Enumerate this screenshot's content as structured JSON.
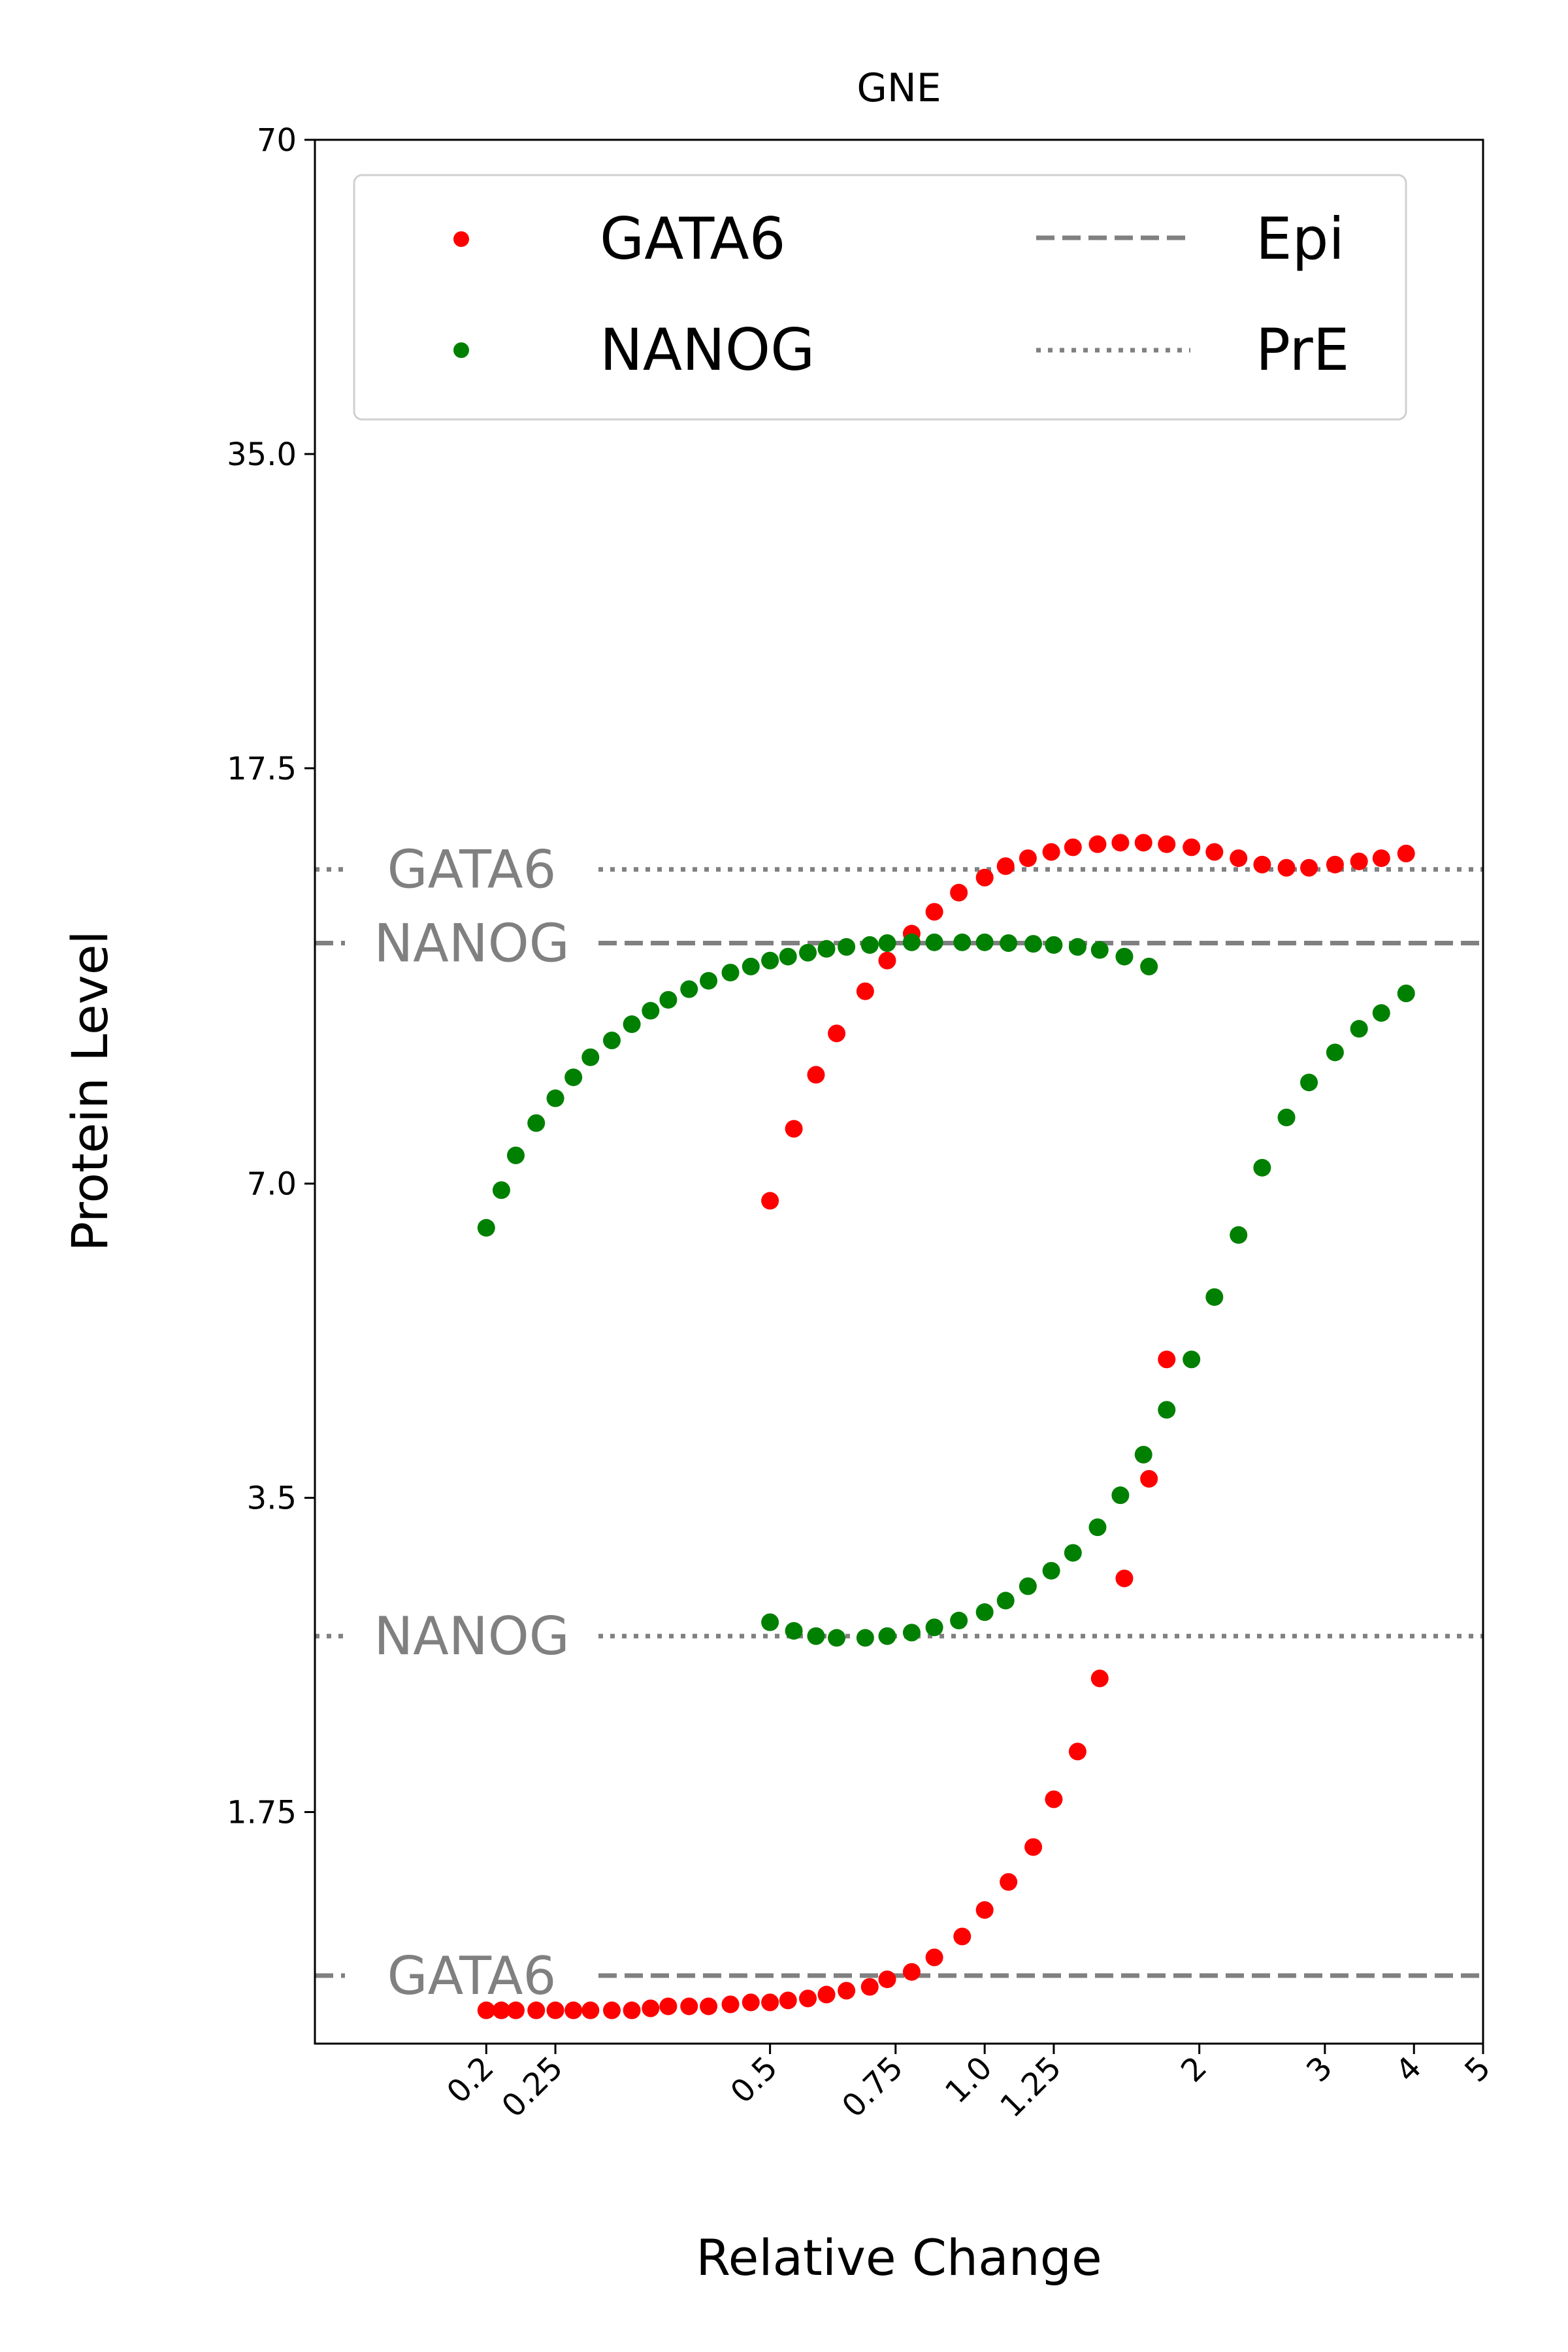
{
  "chart_data": {
    "type": "scatter",
    "title": "GNE",
    "xlabel": "Relative Change",
    "ylabel": "Protein Level",
    "x_scale": "log",
    "y_scale": "log",
    "xlim": [
      0.115,
      5.0
    ],
    "ylim": [
      1.05,
      70
    ],
    "x_ticks": [
      {
        "value": 0.2,
        "label": "0.2"
      },
      {
        "value": 0.25,
        "label": "0.25"
      },
      {
        "value": 0.5,
        "label": "0.5"
      },
      {
        "value": 0.75,
        "label": "0.75"
      },
      {
        "value": 1.0,
        "label": "1.0"
      },
      {
        "value": 1.25,
        "label": "1.25"
      },
      {
        "value": 2,
        "label": "2"
      },
      {
        "value": 3,
        "label": "3"
      },
      {
        "value": 4,
        "label": "4"
      },
      {
        "value": 5,
        "label": "5"
      }
    ],
    "y_ticks": [
      {
        "value": 1.75,
        "label": "1.75"
      },
      {
        "value": 3.5,
        "label": "3.5"
      },
      {
        "value": 7.0,
        "label": "7.0"
      },
      {
        "value": 17.5,
        "label": "17.5"
      },
      {
        "value": 35.0,
        "label": "35.0"
      },
      {
        "value": 70,
        "label": "70"
      }
    ],
    "legend": {
      "placement": "top",
      "columns": 2,
      "entries": [
        {
          "label": "GATA6",
          "kind": "marker",
          "color": "#ff0000"
        },
        {
          "label": "NANOG",
          "kind": "marker",
          "color": "#008000"
        },
        {
          "label": "Epi",
          "kind": "dashed",
          "color": "#808080"
        },
        {
          "label": "PrE",
          "kind": "dotted",
          "color": "#808080"
        }
      ]
    },
    "reference_lines": [
      {
        "label": "GATA6",
        "y": 14.0,
        "style": "dotted",
        "color": "#808080"
      },
      {
        "label": "NANOG",
        "y": 11.9,
        "style": "dashed",
        "color": "#808080"
      },
      {
        "label": "NANOG",
        "y": 2.58,
        "style": "dotted",
        "color": "#808080"
      },
      {
        "label": "GATA6",
        "y": 1.22,
        "style": "dashed",
        "color": "#808080"
      }
    ],
    "series": [
      {
        "name": "GATA6",
        "color": "#ff0000",
        "points": [
          [
            0.2,
            1.13
          ],
          [
            0.21,
            1.13
          ],
          [
            0.22,
            1.13
          ],
          [
            0.235,
            1.13
          ],
          [
            0.25,
            1.13
          ],
          [
            0.265,
            1.13
          ],
          [
            0.28,
            1.13
          ],
          [
            0.3,
            1.13
          ],
          [
            0.32,
            1.13
          ],
          [
            0.34,
            1.135
          ],
          [
            0.36,
            1.14
          ],
          [
            0.385,
            1.14
          ],
          [
            0.41,
            1.14
          ],
          [
            0.44,
            1.145
          ],
          [
            0.47,
            1.15
          ],
          [
            0.5,
            1.15
          ],
          [
            0.53,
            1.155
          ],
          [
            0.565,
            1.16
          ],
          [
            0.6,
            1.17
          ],
          [
            0.64,
            1.18
          ],
          [
            0.69,
            1.19
          ],
          [
            0.73,
            1.21
          ],
          [
            0.79,
            1.23
          ],
          [
            0.85,
            1.27
          ],
          [
            0.93,
            1.33
          ],
          [
            1.0,
            1.41
          ],
          [
            1.08,
            1.5
          ],
          [
            1.17,
            1.62
          ],
          [
            1.25,
            1.8
          ],
          [
            1.35,
            2.0
          ],
          [
            1.45,
            2.35
          ],
          [
            1.57,
            2.93
          ],
          [
            1.7,
            3.65
          ],
          [
            1.8,
            4.75
          ],
          [
            0.5,
            6.74
          ],
          [
            0.54,
            7.9
          ],
          [
            0.58,
            8.9
          ],
          [
            0.62,
            9.75
          ],
          [
            0.68,
            10.7
          ],
          [
            0.73,
            11.45
          ],
          [
            0.79,
            12.15
          ],
          [
            0.85,
            12.75
          ],
          [
            0.92,
            13.3
          ],
          [
            1.0,
            13.75
          ],
          [
            1.07,
            14.1
          ],
          [
            1.15,
            14.35
          ],
          [
            1.24,
            14.55
          ],
          [
            1.33,
            14.7
          ],
          [
            1.44,
            14.8
          ],
          [
            1.55,
            14.85
          ],
          [
            1.67,
            14.85
          ],
          [
            1.8,
            14.8
          ],
          [
            1.95,
            14.7
          ],
          [
            2.1,
            14.55
          ],
          [
            2.27,
            14.35
          ],
          [
            2.45,
            14.15
          ],
          [
            2.65,
            14.05
          ],
          [
            2.85,
            14.05
          ],
          [
            3.1,
            14.15
          ],
          [
            3.35,
            14.25
          ],
          [
            3.6,
            14.35
          ],
          [
            3.9,
            14.5
          ]
        ]
      },
      {
        "name": "NANOG",
        "color": "#008000",
        "points": [
          [
            0.2,
            6.35
          ],
          [
            0.21,
            6.9
          ],
          [
            0.22,
            7.45
          ],
          [
            0.235,
            8.0
          ],
          [
            0.25,
            8.45
          ],
          [
            0.265,
            8.85
          ],
          [
            0.28,
            9.25
          ],
          [
            0.3,
            9.6
          ],
          [
            0.32,
            9.95
          ],
          [
            0.34,
            10.25
          ],
          [
            0.36,
            10.5
          ],
          [
            0.385,
            10.75
          ],
          [
            0.41,
            10.95
          ],
          [
            0.44,
            11.15
          ],
          [
            0.47,
            11.3
          ],
          [
            0.5,
            11.45
          ],
          [
            0.53,
            11.55
          ],
          [
            0.565,
            11.65
          ],
          [
            0.6,
            11.75
          ],
          [
            0.64,
            11.8
          ],
          [
            0.69,
            11.85
          ],
          [
            0.73,
            11.9
          ],
          [
            0.79,
            11.92
          ],
          [
            0.85,
            11.92
          ],
          [
            0.93,
            11.92
          ],
          [
            1.0,
            11.92
          ],
          [
            1.08,
            11.9
          ],
          [
            1.17,
            11.88
          ],
          [
            1.25,
            11.85
          ],
          [
            1.35,
            11.8
          ],
          [
            1.45,
            11.72
          ],
          [
            1.57,
            11.55
          ],
          [
            1.7,
            11.3
          ],
          [
            0.5,
            2.66
          ],
          [
            0.54,
            2.61
          ],
          [
            0.58,
            2.58
          ],
          [
            0.62,
            2.57
          ],
          [
            0.68,
            2.57
          ],
          [
            0.73,
            2.58
          ],
          [
            0.79,
            2.6
          ],
          [
            0.85,
            2.63
          ],
          [
            0.92,
            2.67
          ],
          [
            1.0,
            2.72
          ],
          [
            1.07,
            2.79
          ],
          [
            1.15,
            2.88
          ],
          [
            1.24,
            2.98
          ],
          [
            1.33,
            3.1
          ],
          [
            1.44,
            3.28
          ],
          [
            1.55,
            3.52
          ],
          [
            1.67,
            3.85
          ],
          [
            1.8,
            4.25
          ],
          [
            1.95,
            4.75
          ],
          [
            2.1,
            5.45
          ],
          [
            2.27,
            6.25
          ],
          [
            2.45,
            7.25
          ],
          [
            2.65,
            8.1
          ],
          [
            2.85,
            8.75
          ],
          [
            3.1,
            9.35
          ],
          [
            3.35,
            9.85
          ],
          [
            3.6,
            10.2
          ],
          [
            3.9,
            10.65
          ]
        ]
      }
    ]
  }
}
